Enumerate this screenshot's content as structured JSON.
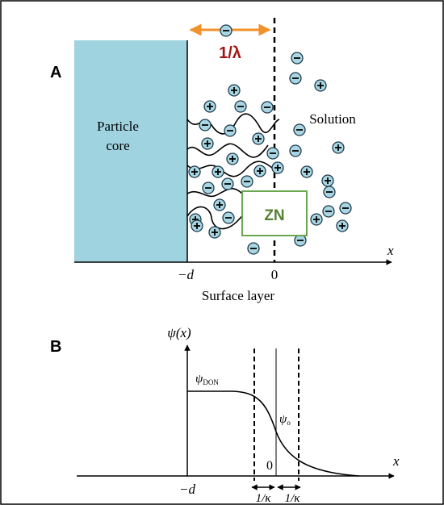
{
  "panel_a": {
    "label": "A",
    "inverse_lambda": "1/λ",
    "particle_core": [
      "Particle",
      "core"
    ],
    "solution": "Solution",
    "zn": "ZN",
    "x_axis": "x",
    "minus_d": "−d",
    "zero": "0",
    "surface_layer": "Surface layer"
  },
  "panel_b": {
    "label": "B",
    "y_axis": "ψ(x)",
    "psi_don": {
      "symbol": "ψ",
      "subscript": "DON"
    },
    "psi_o": {
      "symbol": "ψ",
      "subscript": "o"
    },
    "zero": "0",
    "x_axis": "x",
    "minus_d": "−d",
    "inverse_kappa": [
      "1/κ",
      "1/κ"
    ]
  }
}
